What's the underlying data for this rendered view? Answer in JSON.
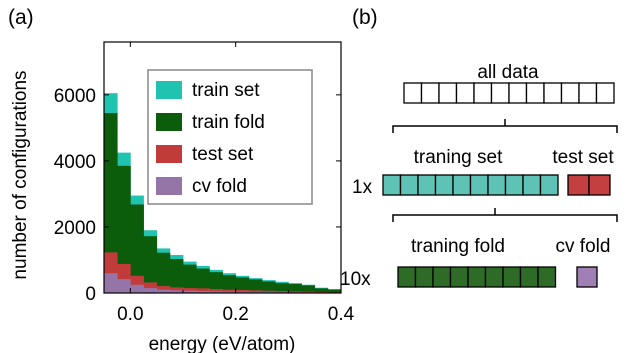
{
  "panels": {
    "a": "(a)",
    "b": "(b)"
  },
  "chart_data": {
    "type": "bar",
    "title": "",
    "xlabel": "energy (eV/atom)",
    "ylabel": "number of configurations",
    "xlim": [
      -0.05,
      0.4
    ],
    "ylim": [
      0,
      7600
    ],
    "xticks": [
      0.0,
      0.2,
      0.4
    ],
    "xtick_labels": [
      "0.0",
      "0.2",
      "0.4"
    ],
    "yticks": [
      0,
      2000,
      4000,
      6000
    ],
    "ytick_labels": [
      "0",
      "2000",
      "4000",
      "6000"
    ],
    "bin_edges": [
      -0.05,
      -0.025,
      0.0,
      0.025,
      0.05,
      0.075,
      0.1,
      0.125,
      0.15,
      0.175,
      0.2,
      0.225,
      0.25,
      0.275,
      0.3,
      0.325,
      0.35,
      0.375,
      0.4
    ],
    "legend_position": "top-right",
    "series": [
      {
        "name": "train set",
        "color": "#20c2b0",
        "values": [
          6050,
          4250,
          2950,
          1900,
          1350,
          1150,
          950,
          820,
          700,
          600,
          520,
          450,
          390,
          340,
          300,
          250,
          160,
          120
        ]
      },
      {
        "name": "train fold",
        "color": "#0b5c0b",
        "values": [
          5450,
          3850,
          2680,
          1720,
          1220,
          1030,
          860,
          740,
          630,
          540,
          470,
          410,
          350,
          300,
          270,
          230,
          140,
          100
        ]
      },
      {
        "name": "test set",
        "color": "#c23b3b",
        "values": [
          1230,
          880,
          520,
          320,
          210,
          170,
          150,
          140,
          120,
          100,
          90,
          80,
          70,
          60,
          50,
          40,
          30,
          20
        ]
      },
      {
        "name": "cv fold",
        "color": "#9575a8",
        "values": [
          600,
          420,
          250,
          150,
          100,
          80,
          70,
          60,
          50,
          45,
          40,
          35,
          30,
          25,
          20,
          18,
          15,
          10
        ]
      }
    ]
  },
  "diagram": {
    "all_data_label": "all data",
    "all_data_boxes": 12,
    "training_set_label": "traning set",
    "test_set_label": "test set",
    "training_set_boxes": 10,
    "test_set_boxes": 2,
    "split_1_label": "1x",
    "training_fold_label": "traning fold",
    "cv_fold_label": "cv fold",
    "training_fold_boxes": 9,
    "cv_fold_boxes": 1,
    "split_2_label": "10x",
    "colors": {
      "training_set": "#5fc2b6",
      "test_set": "#c43f3f",
      "training_fold": "#2e6b27",
      "cv_fold": "#a07fb4",
      "empty": "#ffffff"
    }
  }
}
